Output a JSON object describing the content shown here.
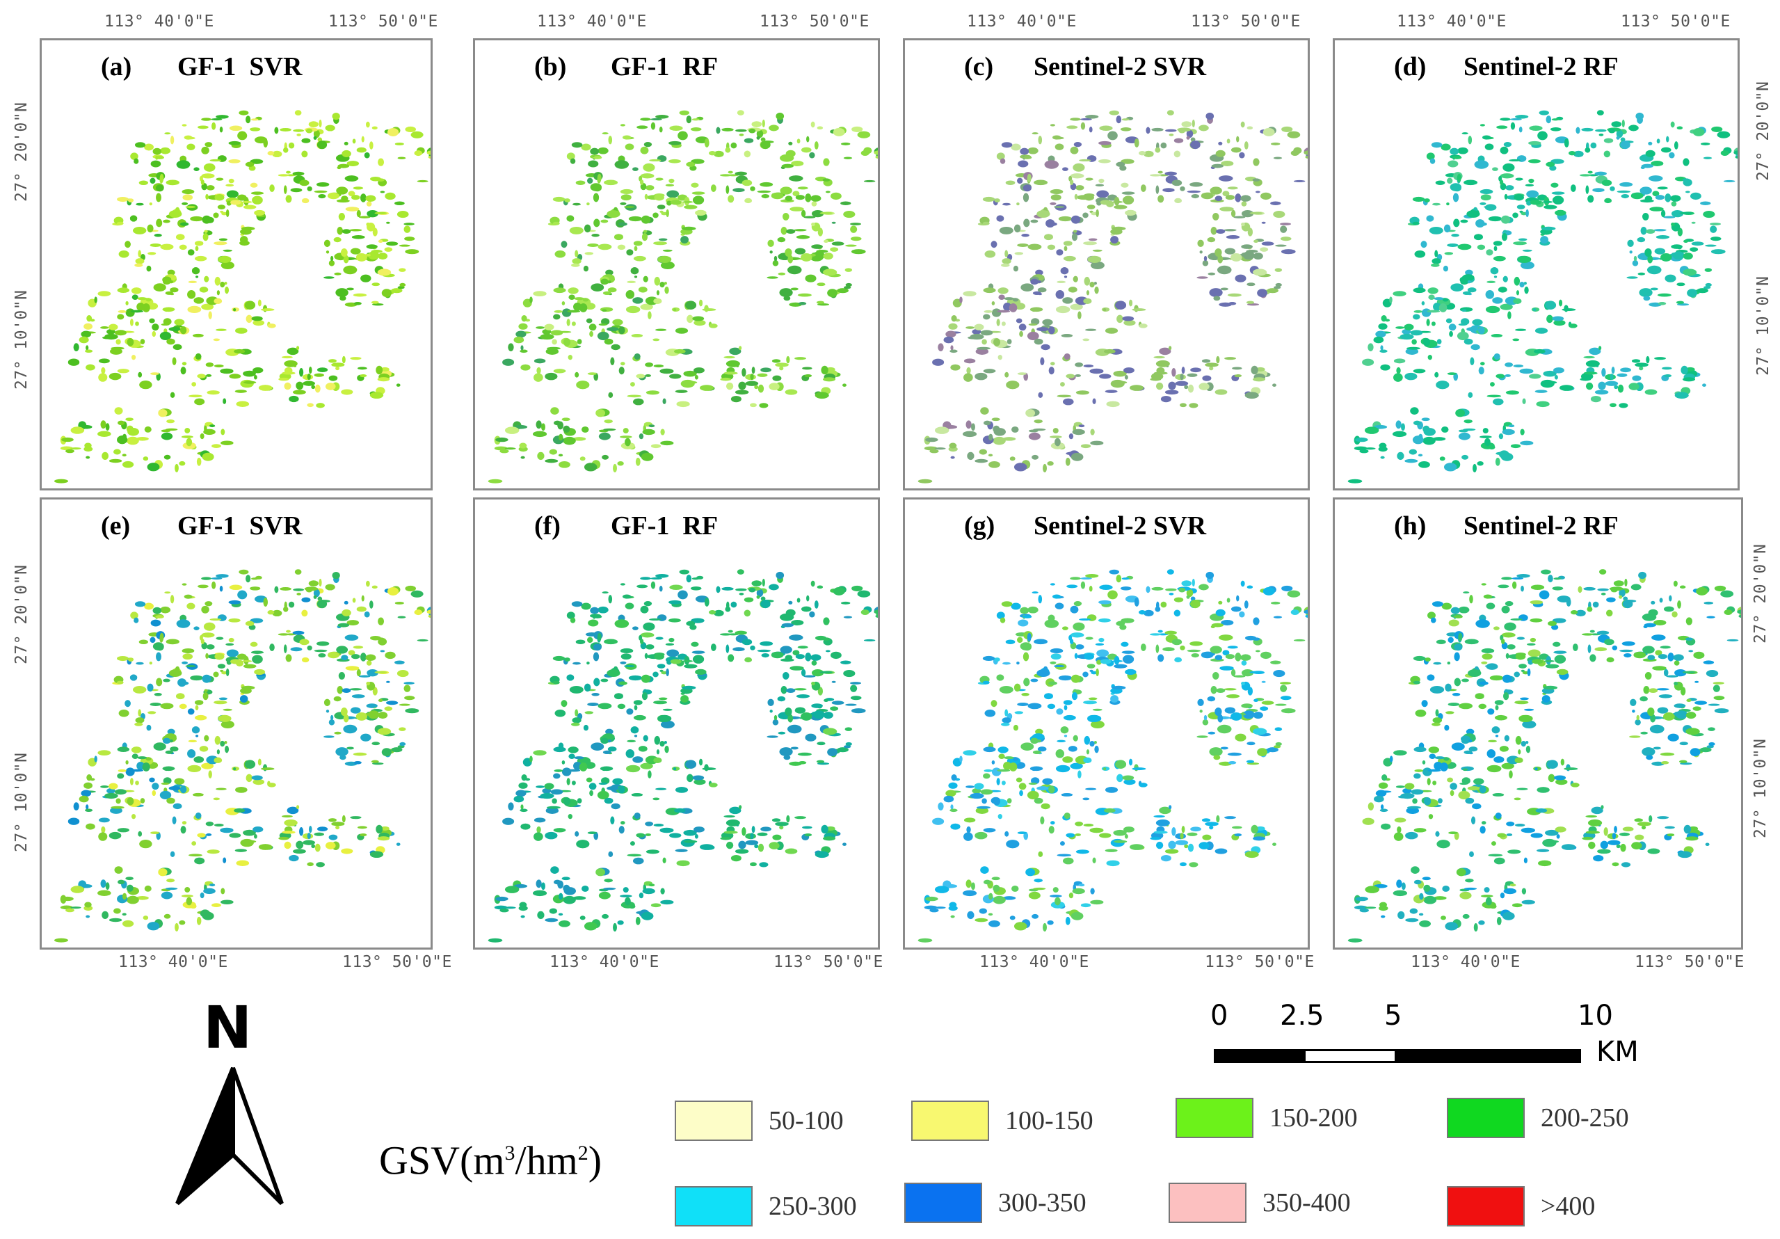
{
  "panels": [
    {
      "letter": "(a)",
      "title": "GF-1  SVR",
      "palette": [
        "#f0f060",
        "#c8f040",
        "#a8e830",
        "#7cd020",
        "#4cbf20",
        "#30b830"
      ]
    },
    {
      "letter": "(b)",
      "title": "GF-1  RF",
      "palette": [
        "#c8f080",
        "#a8e850",
        "#8cdc40",
        "#60c830",
        "#40b040",
        "#3aa860"
      ]
    },
    {
      "letter": "(c)",
      "title": "Sentinel-2 SVR",
      "palette": [
        "#c8e8a0",
        "#a8d878",
        "#90c860",
        "#7aa880",
        "#6a70b0",
        "#9a80a0"
      ]
    },
    {
      "letter": "(d)",
      "title": "Sentinel-2 RF",
      "palette": [
        "#40d080",
        "#20c870",
        "#10c080",
        "#20c0b0",
        "#30b8d0",
        "#50d090"
      ]
    },
    {
      "letter": "(e)",
      "title": "GF-1  SVR",
      "palette": [
        "#e8f040",
        "#b8e840",
        "#80d030",
        "#30b860",
        "#20a8c8",
        "#1090d0"
      ]
    },
    {
      "letter": "(f)",
      "title": "GF-1  RF",
      "palette": [
        "#70d850",
        "#30c060",
        "#20b870",
        "#10b0a0",
        "#2098c0",
        "#40c850"
      ]
    },
    {
      "letter": "(g)",
      "title": "Sentinel-2 SVR",
      "palette": [
        "#30d0e8",
        "#10b8e8",
        "#20a0e0",
        "#60d060",
        "#80d840",
        "#40c0f0"
      ]
    },
    {
      "letter": "(h)",
      "title": "Sentinel-2 RF",
      "palette": [
        "#80d840",
        "#60d040",
        "#30c070",
        "#20b0c0",
        "#10a0e0",
        "#a0e050"
      ]
    }
  ],
  "coords": {
    "lon_left": "113° 40'0\"E",
    "lon_right": "113° 50'0\"E",
    "lat_top": "27° 20'0\"N",
    "lat_bottom": "27° 10'0\"N"
  },
  "north_arrow": {
    "label": "N"
  },
  "scale_bar": {
    "ticks": [
      "0",
      "2.5",
      "5",
      "10"
    ],
    "unit": "KM"
  },
  "legend": {
    "title_prefix": "GSV(m",
    "title_sup1": "3",
    "title_mid": "/hm",
    "title_sup2": "2",
    "title_suffix": ")",
    "items": [
      {
        "label": "50-100",
        "color": "#fdfdc8"
      },
      {
        "label": "100-150",
        "color": "#f8f870"
      },
      {
        "label": "150-200",
        "color": "#6cf21a"
      },
      {
        "label": "200-250",
        "color": "#10d820"
      },
      {
        "label": "250-300",
        "color": "#10e0f8"
      },
      {
        "label": "300-350",
        "color": "#0a72f0"
      },
      {
        "label": "350-400",
        "color": "#fcc0c0"
      },
      {
        "label": ">400",
        "color": "#f01010"
      }
    ]
  }
}
